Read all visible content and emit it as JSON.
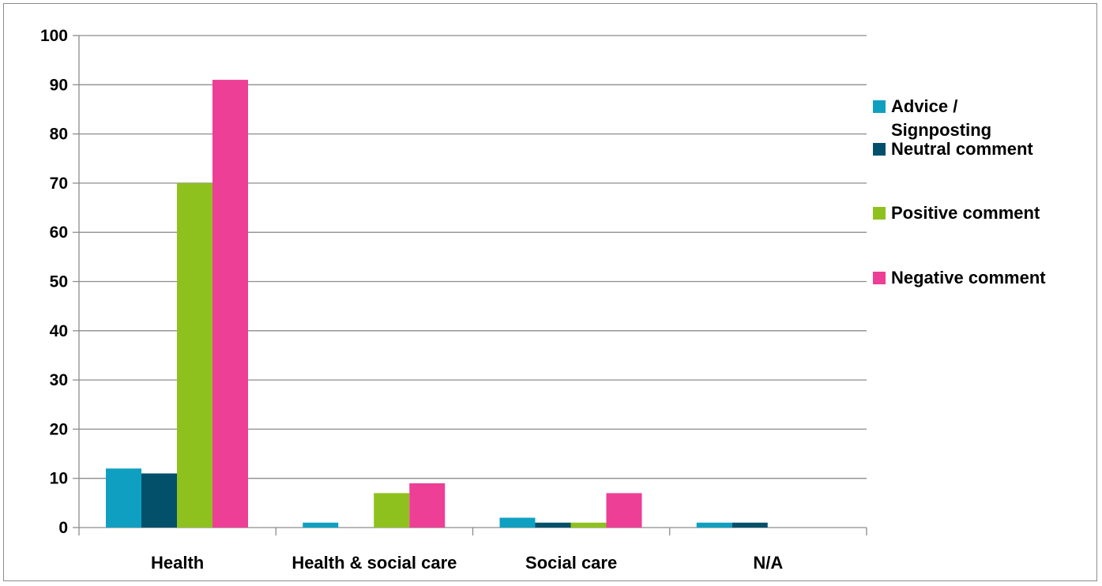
{
  "chart_data": {
    "type": "bar",
    "categories": [
      "Health",
      "Health & social care",
      "Social care",
      "N/A"
    ],
    "series": [
      {
        "name": "Advice / Signposting",
        "color": "#0fa0c1",
        "values": [
          12,
          1,
          2,
          1
        ]
      },
      {
        "name": "Neutral comment",
        "color": "#03506b",
        "values": [
          11,
          0,
          1,
          1
        ]
      },
      {
        "name": "Positive comment",
        "color": "#8fc11e",
        "values": [
          70,
          7,
          1,
          0
        ]
      },
      {
        "name": "Negative comment",
        "color": "#ec3f95",
        "values": [
          91,
          9,
          7,
          0
        ]
      }
    ],
    "legend": [
      [
        "Advice /",
        "Signposting"
      ],
      [
        "Neutral comment"
      ],
      [
        "Positive comment"
      ],
      [
        "Negative comment"
      ]
    ],
    "title": "",
    "xlabel": "",
    "ylabel": "",
    "ylim": [
      0,
      100
    ],
    "yticks": [
      "0",
      "10",
      "20",
      "30",
      "40",
      "50",
      "60",
      "70",
      "80",
      "90",
      "100"
    ],
    "grid": true,
    "legend_position": "right"
  }
}
